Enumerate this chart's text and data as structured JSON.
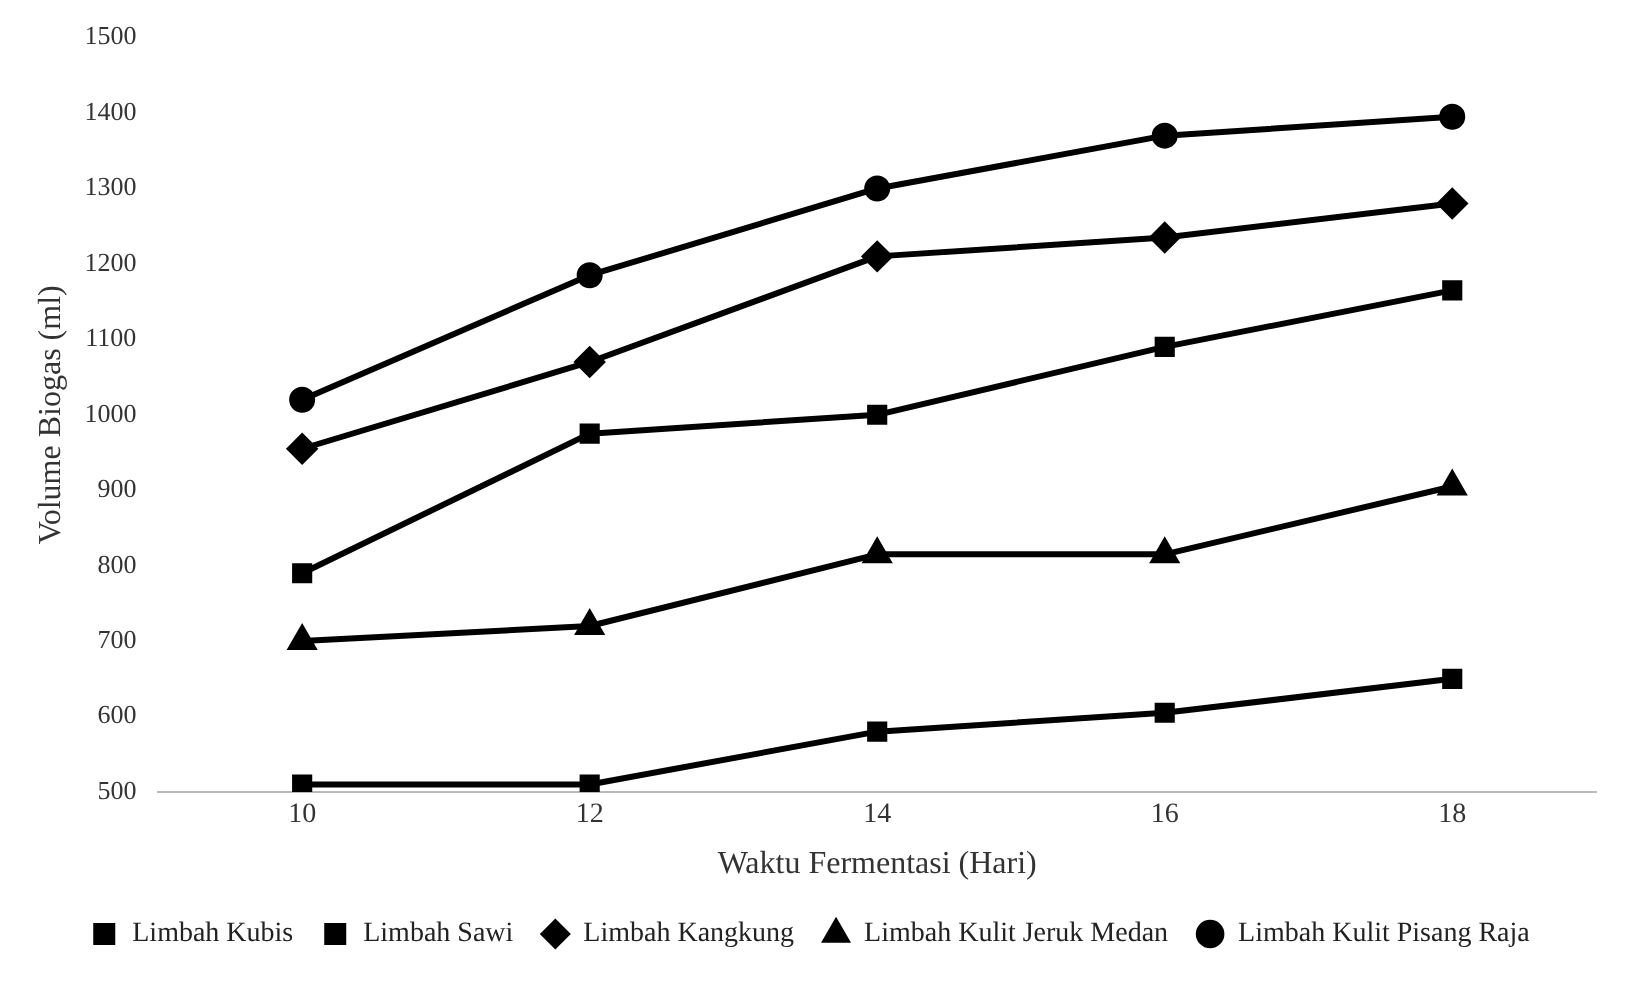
{
  "chart_data": {
    "type": "line",
    "xlabel": "Waktu Fermentasi (Hari)",
    "ylabel": "Volume Biogas (ml)",
    "x": [
      10,
      12,
      14,
      16,
      18
    ],
    "xlim": [
      9,
      19
    ],
    "xticks": [
      10,
      12,
      14,
      16,
      18
    ],
    "ylim": [
      500,
      1500
    ],
    "yticks": [
      500,
      600,
      700,
      800,
      900,
      1000,
      1100,
      1200,
      1300,
      1400,
      1500
    ],
    "grid": false,
    "legend": "bottom",
    "line_style": "solid",
    "series": [
      {
        "name": "Limbah Kubis",
        "color": "#000000",
        "marker": "square",
        "values": [
          510,
          510,
          580,
          605,
          650
        ]
      },
      {
        "name": "Limbah Sawi",
        "color": "#000000",
        "marker": "square",
        "values": [
          790,
          975,
          1000,
          1090,
          1165
        ]
      },
      {
        "name": "Limbah Kangkung",
        "color": "#000000",
        "marker": "diamond",
        "values": [
          955,
          1070,
          1210,
          1235,
          1280
        ]
      },
      {
        "name": "Limbah Kulit Jeruk Medan",
        "color": "#000000",
        "marker": "triangle",
        "values": [
          700,
          720,
          815,
          815,
          905
        ]
      },
      {
        "name": "Limbah Kulit Pisang Raja",
        "color": "#000000",
        "marker": "circle",
        "values": [
          1020,
          1185,
          1300,
          1370,
          1395
        ]
      }
    ]
  }
}
